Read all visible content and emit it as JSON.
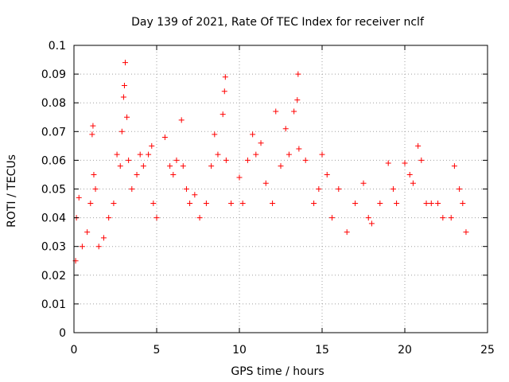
{
  "chart_data": {
    "type": "scatter",
    "title": "Day 139 of 2021, Rate Of TEC Index for receiver nclf",
    "xlabel": "GPS time / hours",
    "ylabel": "ROTI / TECUs",
    "xlim": [
      0,
      25
    ],
    "ylim": [
      0,
      0.1
    ],
    "x_ticks": [
      "0",
      "5",
      "10",
      "15",
      "20",
      "25"
    ],
    "y_ticks": [
      "0",
      "0.01",
      "0.02",
      "0.03",
      "0.04",
      "0.05",
      "0.06",
      "0.07",
      "0.08",
      "0.09",
      "0.1"
    ],
    "grid": true,
    "marker": "plus",
    "color": "#ff0000",
    "series": [
      {
        "x": [
          0.1,
          0.15,
          0.3,
          0.5,
          0.8,
          1.0,
          1.1,
          1.15,
          1.2,
          1.3,
          1.5,
          1.8,
          2.1,
          2.4,
          2.6,
          2.8,
          2.9,
          3.0,
          3.05,
          3.1,
          3.2,
          3.3,
          3.5,
          3.8,
          4.0,
          4.2,
          4.5,
          4.7,
          4.8,
          5.0,
          5.5,
          5.8,
          6.0,
          6.2,
          6.5,
          6.6,
          6.8,
          7.0,
          7.3,
          7.6,
          8.0,
          8.3,
          8.5,
          8.7,
          9.0,
          9.1,
          9.15,
          9.2,
          9.5,
          10.0,
          10.2,
          10.5,
          10.8,
          11.0,
          11.3,
          11.6,
          12.0,
          12.2,
          12.5,
          12.8,
          13.0,
          13.3,
          13.5,
          13.55,
          13.6,
          14.0,
          14.5,
          14.8,
          15.0,
          15.3,
          15.6,
          16.0,
          16.5,
          17.0,
          17.5,
          17.8,
          18.0,
          18.5,
          19.0,
          19.3,
          19.5,
          20.0,
          20.3,
          20.5,
          20.8,
          21.0,
          21.3,
          21.6,
          22.0,
          22.3,
          22.8,
          23.0,
          23.3,
          23.5,
          23.7
        ],
        "y": [
          0.025,
          0.04,
          0.047,
          0.03,
          0.035,
          0.045,
          0.069,
          0.072,
          0.055,
          0.05,
          0.03,
          0.033,
          0.04,
          0.045,
          0.062,
          0.058,
          0.07,
          0.082,
          0.086,
          0.094,
          0.075,
          0.06,
          0.05,
          0.055,
          0.062,
          0.058,
          0.062,
          0.065,
          0.045,
          0.04,
          0.068,
          0.058,
          0.055,
          0.06,
          0.074,
          0.058,
          0.05,
          0.045,
          0.048,
          0.04,
          0.045,
          0.058,
          0.069,
          0.062,
          0.076,
          0.084,
          0.089,
          0.06,
          0.045,
          0.054,
          0.045,
          0.06,
          0.069,
          0.062,
          0.066,
          0.052,
          0.045,
          0.077,
          0.058,
          0.071,
          0.062,
          0.077,
          0.081,
          0.09,
          0.064,
          0.06,
          0.045,
          0.05,
          0.062,
          0.055,
          0.04,
          0.05,
          0.035,
          0.045,
          0.052,
          0.04,
          0.038,
          0.045,
          0.059,
          0.05,
          0.045,
          0.059,
          0.055,
          0.052,
          0.065,
          0.06,
          0.045,
          0.045,
          0.045,
          0.04,
          0.04,
          0.058,
          0.05,
          0.045,
          0.035
        ]
      }
    ]
  }
}
